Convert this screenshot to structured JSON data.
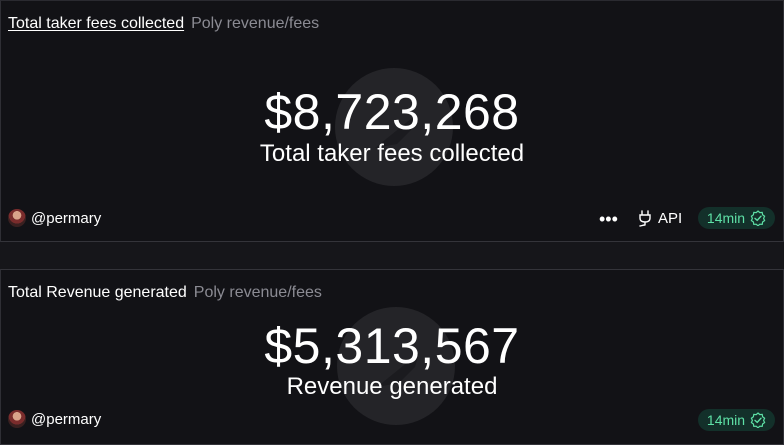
{
  "cards": [
    {
      "title": "Total taker fees collected",
      "subtitle": "Poly revenue/fees",
      "value": "$8,723,268",
      "label": "Total taker fees collected",
      "author": "@permary",
      "more_label": "•••",
      "api_label": "API",
      "freshness": "14min",
      "icons": [
        "avatar",
        "more-icon",
        "plug-icon",
        "verified-check-icon"
      ]
    },
    {
      "title": "Total Revenue generated",
      "subtitle": "Poly revenue/fees",
      "value": "$5,313,567",
      "label": "Revenue generated",
      "author": "@permary",
      "freshness": "14min",
      "icons": [
        "avatar",
        "verified-check-icon"
      ]
    }
  ],
  "colors": {
    "background": "#121216",
    "badge_bg": "#13302a",
    "badge_text": "#5ee0a6",
    "subtitle": "#8b8b93"
  }
}
